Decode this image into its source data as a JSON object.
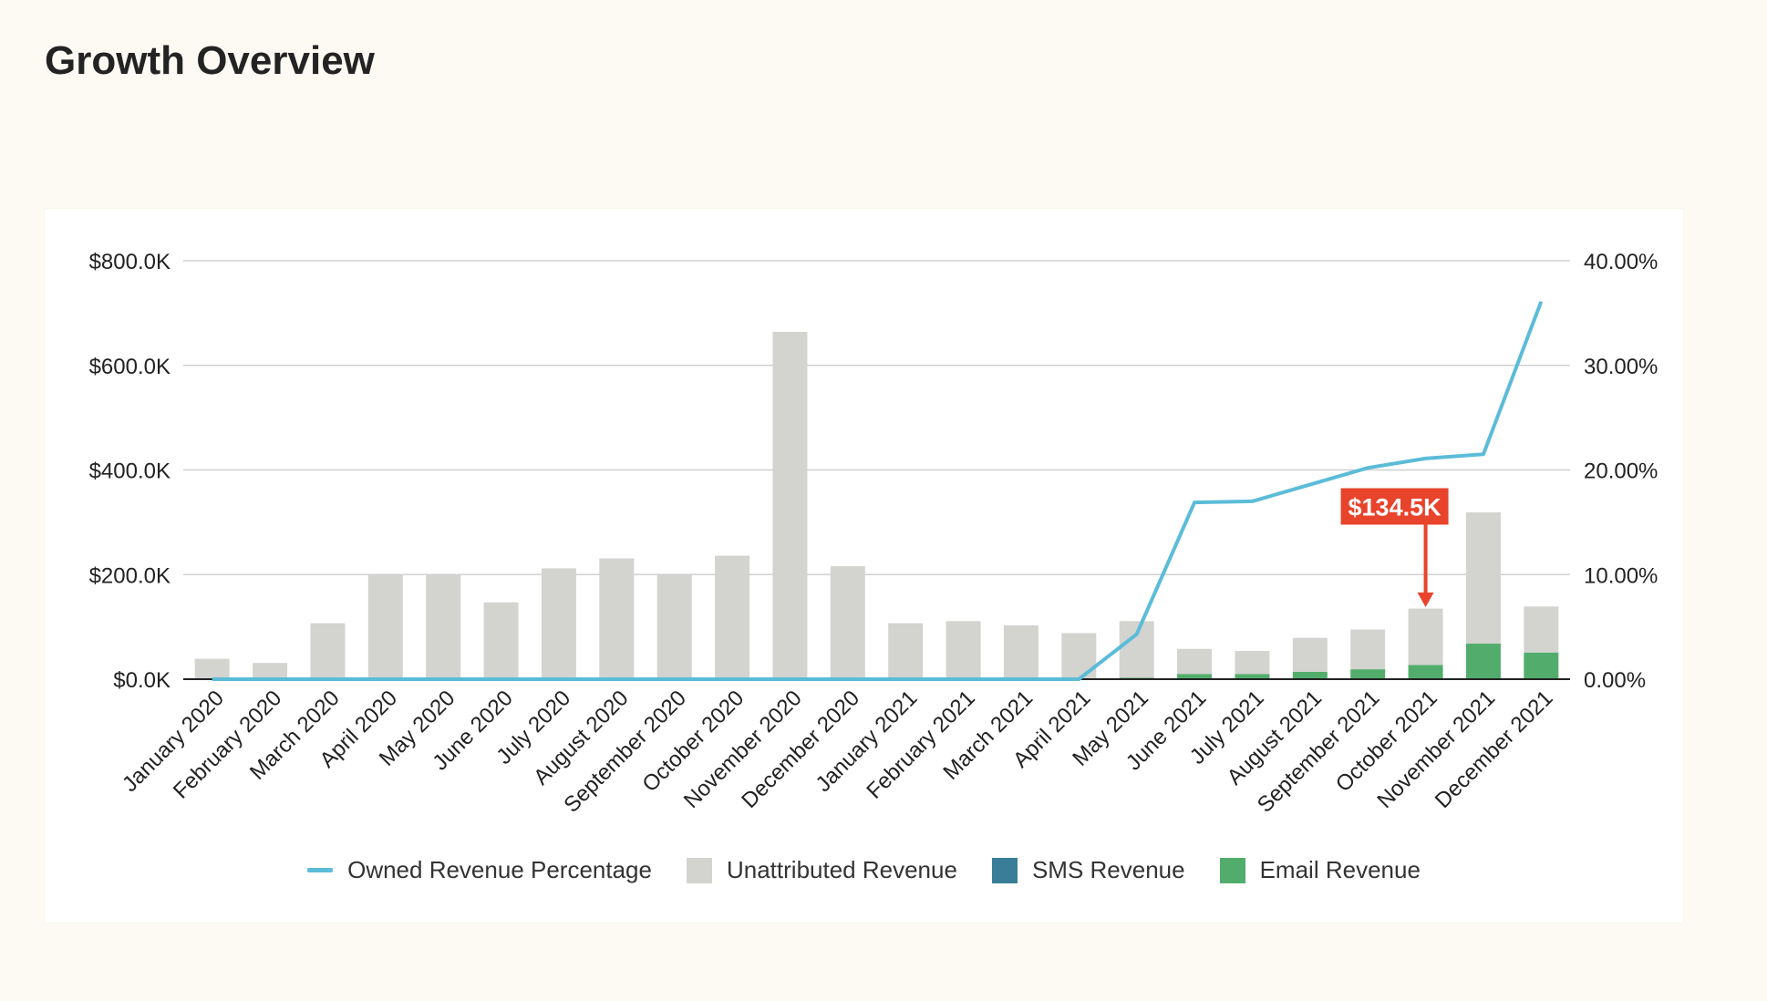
{
  "page": {
    "title": "Growth Overview"
  },
  "colors": {
    "background": "#fdfaf3",
    "card": "#ffffff",
    "gridline": "#d0d0d0",
    "baseline": "#222222",
    "unattributed": "#d3d3d0",
    "sms": "#3a7d98",
    "email": "#52ad6c",
    "owned_line": "#5bbcd8",
    "annotation": "#e8432b"
  },
  "chart_data": {
    "type": "bar",
    "stacked": true,
    "categories": [
      "January 2020",
      "February 2020",
      "March 2020",
      "April 2020",
      "May 2020",
      "June 2020",
      "July 2020",
      "August 2020",
      "September 2020",
      "October 2020",
      "November 2020",
      "December 2020",
      "January 2021",
      "February 2021",
      "March 2021",
      "April 2021",
      "May 2021",
      "June 2021",
      "July 2021",
      "August 2021",
      "September 2021",
      "October 2021",
      "November 2021",
      "December 2021"
    ],
    "y_left": {
      "ylim": [
        0,
        800000
      ],
      "ticks": [
        0,
        200000,
        400000,
        600000,
        800000
      ],
      "tick_labels": [
        "$0.0K",
        "$200.0K",
        "$400.0K",
        "$600.0K",
        "$800.0K"
      ]
    },
    "y_right": {
      "ylim": [
        0,
        40
      ],
      "ticks": [
        0,
        10,
        20,
        30,
        40
      ],
      "tick_labels": [
        "0.00%",
        "10.00%",
        "20.00%",
        "30.00%",
        "40.00%"
      ]
    },
    "series": [
      {
        "name": "Email Revenue",
        "type": "bar",
        "axis": "left",
        "color_key": "email",
        "values": [
          0,
          0,
          0,
          0,
          0,
          0,
          0,
          0,
          0,
          0,
          0,
          0,
          0,
          0,
          0,
          0,
          3000,
          10000,
          10000,
          14000,
          19000,
          27000,
          68000,
          51000
        ]
      },
      {
        "name": "SMS Revenue",
        "type": "bar",
        "axis": "left",
        "color_key": "sms",
        "values": [
          0,
          0,
          0,
          0,
          0,
          0,
          0,
          0,
          0,
          0,
          0,
          0,
          0,
          0,
          0,
          0,
          0,
          0,
          0,
          0,
          0,
          0,
          0,
          0
        ]
      },
      {
        "name": "Unattributed Revenue",
        "type": "bar",
        "axis": "left",
        "color_key": "unattributed",
        "values": [
          39000,
          31000,
          107000,
          200000,
          200000,
          147000,
          212000,
          231000,
          199000,
          236000,
          664000,
          216000,
          107000,
          111000,
          103000,
          88000,
          108000,
          48000,
          44000,
          65000,
          76000,
          108000,
          251000,
          88000
        ]
      },
      {
        "name": "Owned Revenue Percentage",
        "type": "line",
        "axis": "right",
        "color_key": "owned_line",
        "values": [
          0,
          0,
          0,
          0,
          0,
          0,
          0,
          0,
          0,
          0,
          0,
          0,
          0,
          0,
          0,
          0,
          4.3,
          16.9,
          17.0,
          18.6,
          20.2,
          21.1,
          21.5,
          36.1
        ]
      }
    ],
    "legend": {
      "position": "bottom",
      "entries": [
        {
          "label": "Owned Revenue Percentage",
          "shape": "line",
          "color_key": "owned_line"
        },
        {
          "label": "Unattributed Revenue",
          "shape": "box",
          "color_key": "unattributed"
        },
        {
          "label": "SMS Revenue",
          "shape": "box",
          "color_key": "sms"
        },
        {
          "label": "Email Revenue",
          "shape": "box",
          "color_key": "email"
        }
      ]
    },
    "annotation": {
      "label": "$134.5K",
      "category": "October 2021",
      "value": 134500
    },
    "grid": true
  }
}
